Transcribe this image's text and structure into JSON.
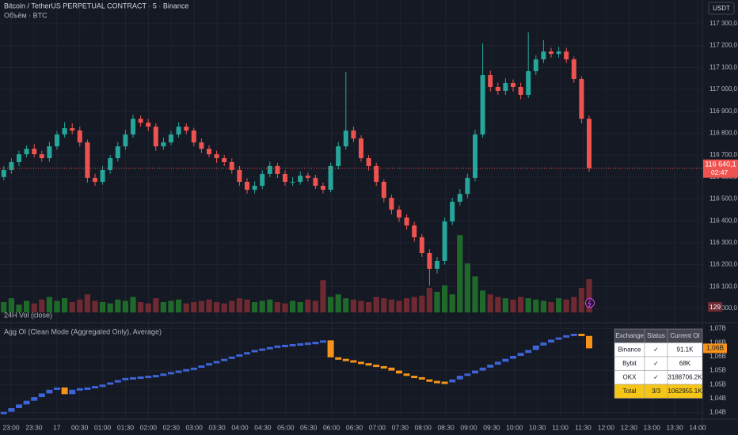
{
  "toolbar": {
    "currency": "USDT"
  },
  "time_axis": {
    "labels": [
      "23:00",
      "23:30",
      "17",
      "00:30",
      "01:00",
      "01:30",
      "02:00",
      "02:30",
      "03:00",
      "03:30",
      "04:00",
      "04:30",
      "05:00",
      "05:30",
      "06:00",
      "06:30",
      "07:00",
      "07:30",
      "08:00",
      "08:30",
      "09:00",
      "09:30",
      "10:00",
      "10:30",
      "11:00",
      "11:30",
      "12:00",
      "12:30",
      "13:00",
      "13:30",
      "14:00"
    ]
  },
  "chart_data": [
    {
      "type": "candlestick",
      "title": "Bitcoin / TetherUS PERPETUAL CONTRACT · 5 · Binance",
      "subtitle": "Объём · BTC",
      "last_price_label": "116 640,1",
      "countdown": "02:47",
      "up_color": "#26a69a",
      "down_color": "#ef5350",
      "volume_up_color": "#1f6a2a",
      "volume_down_color": "#6e2a30",
      "grid": true,
      "ylim": [
        115982,
        117408
      ],
      "yticks": [
        {
          "value": 117300,
          "label": "117 300,0"
        },
        {
          "value": 117200,
          "label": "117 200,0"
        },
        {
          "value": 117100,
          "label": "117 100,0"
        },
        {
          "value": 117000,
          "label": "117 000,0"
        },
        {
          "value": 116900,
          "label": "116 900,0"
        },
        {
          "value": 116800,
          "label": "116 800,0"
        },
        {
          "value": 116700,
          "label": "116 700,0"
        },
        {
          "value": 116600,
          "label": "116 600,0"
        },
        {
          "value": 116500,
          "label": "116 500,0"
        },
        {
          "value": 116400,
          "label": "116 400,0"
        },
        {
          "value": 116300,
          "label": "116 300,0"
        },
        {
          "value": 116200,
          "label": "116 200,0"
        },
        {
          "value": 116100,
          "label": "116 100,0"
        },
        {
          "value": 116000,
          "label": "116 000,0"
        }
      ],
      "open": [
        116600,
        116632,
        116668,
        116704,
        116729,
        116704,
        116686,
        116740,
        116794,
        116823,
        116812,
        116758,
        116596,
        116578,
        116632,
        116686,
        116740,
        116794,
        116866,
        116848,
        116830,
        116740,
        116758,
        116794,
        116830,
        116812,
        116758,
        116729,
        116704,
        116686,
        116668,
        116632,
        116578,
        116542,
        116560,
        116614,
        116650,
        116614,
        116578,
        116578,
        116606,
        116596,
        116560,
        116542,
        116650,
        116740,
        116812,
        116776,
        116686,
        116650,
        116578,
        116505,
        116451,
        116415,
        116379,
        116325,
        116253,
        116181,
        116217,
        116397,
        116487,
        116523,
        116596,
        116794,
        117065,
        117011,
        116993,
        117029,
        117011,
        116975,
        117083,
        117137,
        117173,
        117162,
        117173,
        117137,
        117047,
        116866
      ],
      "high": [
        116650,
        116685,
        116720,
        116745,
        116750,
        116720,
        116760,
        116810,
        116850,
        116845,
        116830,
        116770,
        116615,
        116650,
        116700,
        116760,
        116815,
        116885,
        116880,
        116865,
        116845,
        116780,
        116810,
        116850,
        116845,
        116825,
        116775,
        116745,
        116720,
        116700,
        116685,
        116650,
        116595,
        116580,
        116630,
        116670,
        116665,
        116630,
        116600,
        116625,
        116620,
        116610,
        116575,
        116665,
        116760,
        117080,
        116830,
        116790,
        116700,
        116665,
        116590,
        116520,
        116470,
        116430,
        116395,
        116340,
        116270,
        116235,
        116415,
        116505,
        116545,
        116615,
        116815,
        117210,
        117085,
        117030,
        117050,
        117045,
        117030,
        117260,
        117155,
        117225,
        117190,
        117195,
        117190,
        117150,
        117060,
        116880
      ],
      "low": [
        116585,
        116615,
        116650,
        116690,
        116690,
        116670,
        116670,
        116725,
        116780,
        116795,
        116740,
        116575,
        116560,
        116565,
        116615,
        116670,
        116725,
        116780,
        116830,
        116810,
        116720,
        116725,
        116745,
        116780,
        116795,
        116740,
        116710,
        116690,
        116665,
        116650,
        116615,
        116560,
        116525,
        116525,
        116545,
        116600,
        116595,
        116560,
        116560,
        116565,
        116580,
        116545,
        116525,
        116530,
        116635,
        116725,
        116760,
        116670,
        116630,
        116560,
        116485,
        116430,
        116395,
        116360,
        116305,
        116235,
        116105,
        116160,
        116200,
        116380,
        116470,
        116505,
        116580,
        116780,
        116990,
        116975,
        116975,
        116990,
        116955,
        116960,
        117065,
        117120,
        117145,
        117145,
        117120,
        117030,
        116845,
        116625
      ],
      "close": [
        116632,
        116668,
        116704,
        116729,
        116704,
        116686,
        116740,
        116794,
        116823,
        116812,
        116758,
        116596,
        116578,
        116632,
        116686,
        116740,
        116794,
        116866,
        116848,
        116830,
        116740,
        116758,
        116794,
        116830,
        116812,
        116758,
        116729,
        116704,
        116686,
        116668,
        116632,
        116578,
        116542,
        116560,
        116614,
        116650,
        116614,
        116578,
        116578,
        116606,
        116596,
        116560,
        116542,
        116650,
        116740,
        116812,
        116776,
        116686,
        116650,
        116578,
        116505,
        116451,
        116415,
        116379,
        116325,
        116253,
        116181,
        116217,
        116397,
        116487,
        116523,
        116596,
        116794,
        117065,
        117011,
        116993,
        117029,
        117011,
        116975,
        117083,
        117137,
        117173,
        117162,
        117173,
        117137,
        117047,
        116866,
        116640.1
      ],
      "volume": [
        40,
        55,
        30,
        45,
        35,
        50,
        60,
        45,
        55,
        40,
        50,
        70,
        45,
        40,
        35,
        50,
        45,
        60,
        40,
        35,
        55,
        40,
        45,
        50,
        35,
        40,
        45,
        50,
        40,
        35,
        45,
        55,
        50,
        40,
        45,
        50,
        40,
        35,
        45,
        40,
        50,
        45,
        125,
        60,
        70,
        55,
        50,
        45,
        40,
        60,
        55,
        50,
        45,
        55,
        60,
        65,
        95,
        80,
        105,
        70,
        300,
        190,
        140,
        85,
        70,
        60,
        55,
        50,
        60,
        55,
        50,
        45,
        40,
        55,
        50,
        60,
        95,
        129
      ]
    },
    {
      "type": "step",
      "pane_label": "24H Vol (close)",
      "title": "Agg OI (Clean Mode (Aggregated Only), Average)",
      "last_label": "1,06B",
      "up_color": "#3d63d8",
      "down_color": "#f7931a",
      "grid": true,
      "ylim": [
        1037630000,
        1072110000
      ],
      "yticks": [
        {
          "value": 1070000000,
          "label": "1,07B"
        },
        {
          "value": 1065000000,
          "label": "1,06B"
        },
        {
          "value": 1060000000,
          "label": "1,06B"
        },
        {
          "value": 1055000000,
          "label": "1,05B"
        },
        {
          "value": 1050000000,
          "label": "1,05B"
        },
        {
          "value": 1045000000,
          "label": "1,04B"
        },
        {
          "value": 1040000000,
          "label": "1,04B"
        }
      ],
      "values": [
        1040263000,
        1041579000,
        1042895000,
        1044211000,
        1045526000,
        1046842000,
        1048158000,
        1048947000,
        1046579000,
        1048158000,
        1048684000,
        1048947000,
        1049474000,
        1050000000,
        1050789000,
        1051579000,
        1052368000,
        1052632000,
        1052895000,
        1053158000,
        1053421000,
        1053947000,
        1054474000,
        1055000000,
        1055526000,
        1056053000,
        1056842000,
        1057632000,
        1058421000,
        1059211000,
        1060000000,
        1060789000,
        1061579000,
        1062368000,
        1062895000,
        1063421000,
        1063947000,
        1064211000,
        1064474000,
        1064737000,
        1065000000,
        1065263000,
        1065789000,
        1059737000,
        1059211000,
        1058684000,
        1058158000,
        1057632000,
        1057105000,
        1056579000,
        1056053000,
        1055000000,
        1053947000,
        1053158000,
        1052632000,
        1051842000,
        1051316000,
        1051053000,
        1050789000,
        1051842000,
        1053158000,
        1053947000,
        1055000000,
        1056053000,
        1057105000,
        1058158000,
        1059211000,
        1060263000,
        1061316000,
        1062368000,
        1063947000,
        1065000000,
        1066053000,
        1066842000,
        1067632000,
        1068158000,
        1067368000,
        1062955100
      ]
    }
  ],
  "oi_table": {
    "headers": [
      "Exchange",
      "Status",
      "Current OI"
    ],
    "rows": [
      [
        "Binance",
        "✓",
        "91.1K"
      ],
      [
        "Bybit",
        "✓",
        "68K"
      ],
      [
        "OKX",
        "✓",
        "3188706.2K"
      ]
    ],
    "total": [
      "Total",
      "3/3",
      "1062955.1K"
    ]
  }
}
